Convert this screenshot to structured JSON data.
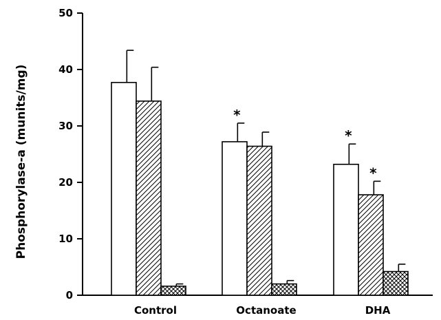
{
  "chart_data": {
    "type": "bar",
    "title": "",
    "xlabel": "",
    "ylabel": "Phosphorylase-a (munits/mg)",
    "ylim": [
      0,
      50
    ],
    "yticks": [
      0,
      10,
      20,
      30,
      40,
      50
    ],
    "grid": false,
    "categories": [
      "Control",
      "Octanoate",
      "DHA"
    ],
    "series": [
      {
        "pattern": "open",
        "values": [
          37.7,
          27.2,
          23.2
        ],
        "errors": [
          5.7,
          3.3,
          3.6
        ],
        "significant": [
          false,
          true,
          true
        ]
      },
      {
        "pattern": "diagonal-hatch",
        "values": [
          34.4,
          26.4,
          17.8
        ],
        "errors": [
          6.0,
          2.5,
          2.4
        ],
        "significant": [
          false,
          false,
          true
        ]
      },
      {
        "pattern": "cross-hatch",
        "values": [
          1.6,
          2.0,
          4.2
        ],
        "errors": [
          0.4,
          0.6,
          1.3
        ],
        "significant": [
          false,
          false,
          false
        ]
      }
    ],
    "significance_marker": "*"
  }
}
